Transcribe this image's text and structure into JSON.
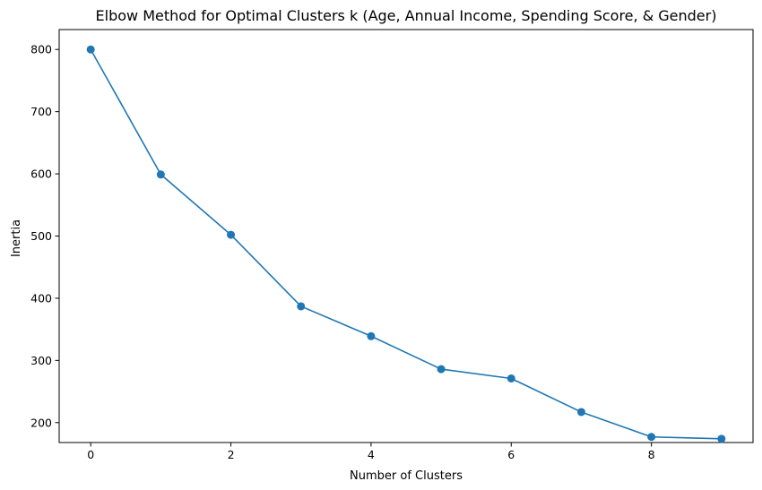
{
  "chart_data": {
    "type": "line",
    "title": "Elbow Method for Optimal Clusters k (Age, Annual Income, Spending Score, & Gender)",
    "xlabel": "Number of Clusters",
    "ylabel": "Inertia",
    "x": [
      0,
      1,
      2,
      3,
      4,
      5,
      6,
      7,
      8,
      9
    ],
    "series": [
      {
        "values": [
          800,
          599,
          502,
          387,
          339,
          286,
          271,
          217,
          177,
          174
        ],
        "color": "#1f77b4",
        "marker": "circle"
      }
    ],
    "xlim": [
      -0.45,
      9.45
    ],
    "ylim": [
      168,
      832
    ],
    "xticks": [
      "0",
      "2",
      "4",
      "6",
      "8"
    ],
    "yticks": [
      "200",
      "300",
      "400",
      "500",
      "600",
      "700",
      "800"
    ],
    "grid": false,
    "legend": "none"
  }
}
